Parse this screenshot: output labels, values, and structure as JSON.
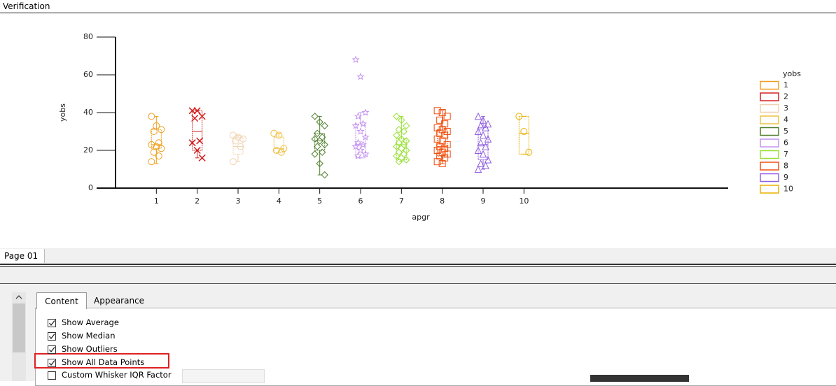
{
  "window_title": "Verification",
  "chart_data": {
    "type": "box",
    "xlabel": "apgr",
    "ylabel": "yobs",
    "xlim": [
      0,
      15
    ],
    "xticks": [
      1,
      2,
      3,
      4,
      5,
      6,
      7,
      8,
      9,
      10
    ],
    "ylim": [
      0,
      80
    ],
    "yticks": [
      0,
      20,
      40,
      60,
      80
    ],
    "legend_title": "yobs",
    "legend": "right",
    "series": [
      {
        "name": "1",
        "color": "#f0a020",
        "marker": "circle",
        "q1": 21,
        "median": 23,
        "q3": 31,
        "low": 13,
        "high": 38,
        "points": [
          38,
          33,
          31,
          30,
          24,
          23,
          22,
          21,
          19,
          17,
          14
        ]
      },
      {
        "name": "2",
        "color": "#d42020",
        "marker": "cross",
        "q1": 20,
        "median": 30,
        "q3": 41,
        "low": 16,
        "high": 41,
        "points": [
          41,
          41,
          38,
          37,
          25,
          24,
          20,
          16
        ]
      },
      {
        "name": "3",
        "color": "#f0d2b0",
        "marker": "circle",
        "q1": 18,
        "median": 22,
        "q3": 27,
        "low": 14,
        "high": 28,
        "points": [
          28,
          27,
          26,
          25,
          22,
          14
        ]
      },
      {
        "name": "4",
        "color": "#f0c040",
        "marker": "circle",
        "q1": 19,
        "median": 21,
        "q3": 27,
        "low": 19,
        "high": 29,
        "points": [
          29,
          28,
          21,
          20,
          19
        ]
      },
      {
        "name": "5",
        "color": "#4f7f2c",
        "marker": "diamond",
        "q1": 20,
        "median": 25,
        "q3": 29,
        "low": 7,
        "high": 38,
        "points": [
          38,
          35,
          33,
          29,
          27,
          26,
          25,
          23,
          22,
          19,
          18,
          13,
          7
        ]
      },
      {
        "name": "6",
        "color": "#c494f0",
        "marker": "star",
        "q1": 16,
        "median": 23,
        "q3": 34,
        "low": 16,
        "high": 40,
        "points": [
          68,
          59,
          40,
          38,
          34,
          33,
          30,
          27,
          24,
          23,
          22,
          20,
          18,
          17
        ]
      },
      {
        "name": "7",
        "color": "#94e030",
        "marker": "diamond",
        "q1": 15,
        "median": 23,
        "q3": 26,
        "low": 14,
        "high": 38,
        "points": [
          38,
          36,
          33,
          31,
          30,
          28,
          26,
          25,
          24,
          23,
          22,
          21,
          20,
          19,
          18,
          17,
          16,
          15,
          14
        ]
      },
      {
        "name": "8",
        "color": "#f05010",
        "marker": "square",
        "q1": 17,
        "median": 22,
        "q3": 31,
        "low": 13,
        "high": 41,
        "points": [
          41,
          40,
          38,
          36,
          34,
          32,
          31,
          30,
          29,
          28,
          26,
          25,
          23,
          22,
          21,
          20,
          19,
          18,
          17,
          16,
          14,
          13
        ]
      },
      {
        "name": "9",
        "color": "#9060e0",
        "marker": "triangle",
        "q1": 15,
        "median": 23,
        "q3": 32,
        "low": 10,
        "high": 38,
        "points": [
          38,
          36,
          34,
          33,
          32,
          30,
          28,
          26,
          24,
          22,
          20,
          18,
          15,
          13,
          12,
          10
        ]
      },
      {
        "name": "10",
        "color": "#e8b000",
        "marker": "circle",
        "q1": 18,
        "median": 29,
        "q3": 38,
        "low": 18,
        "high": 38,
        "points": [
          38,
          30,
          19
        ]
      }
    ]
  },
  "page_tab": "Page 01",
  "tabs": [
    "Content",
    "Appearance"
  ],
  "options": [
    {
      "label": "Show Average",
      "checked": true
    },
    {
      "label": "Show Median",
      "checked": true
    },
    {
      "label": "Show Outliers",
      "checked": true
    },
    {
      "label": "Show All Data Points",
      "checked": true
    },
    {
      "label": "Custom Whisker IQR Factor",
      "checked": false
    }
  ]
}
